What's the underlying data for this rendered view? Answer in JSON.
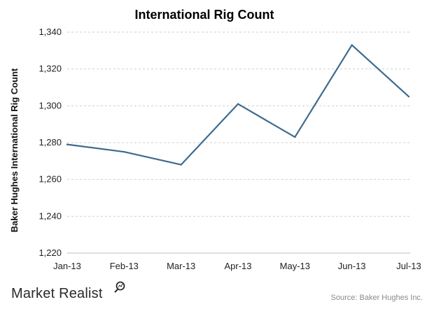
{
  "chart_data": {
    "type": "line",
    "title": "International Rig Count",
    "xlabel": "",
    "ylabel": "Baker Hughes International Rig Count",
    "categories": [
      "Jan-13",
      "Feb-13",
      "Mar-13",
      "Apr-13",
      "May-13",
      "Jun-13",
      "Jul-13"
    ],
    "series": [
      {
        "values": [
          1279,
          1275,
          1268,
          1301,
          1283,
          1333,
          1305
        ],
        "color": "#3e6b8f"
      }
    ],
    "ylim": [
      1220,
      1340
    ],
    "yticks": [
      1220,
      1240,
      1260,
      1280,
      1300,
      1320,
      1340
    ],
    "ytick_labels": [
      "1,220",
      "1,240",
      "1,260",
      "1,280",
      "1,300",
      "1,320",
      "1,340"
    ],
    "grid": true,
    "legend": "none"
  },
  "footer": {
    "brand": "Market Realist",
    "brand_icon": "magnifier-chart-icon",
    "source": "Source: Baker Hughes Inc."
  }
}
